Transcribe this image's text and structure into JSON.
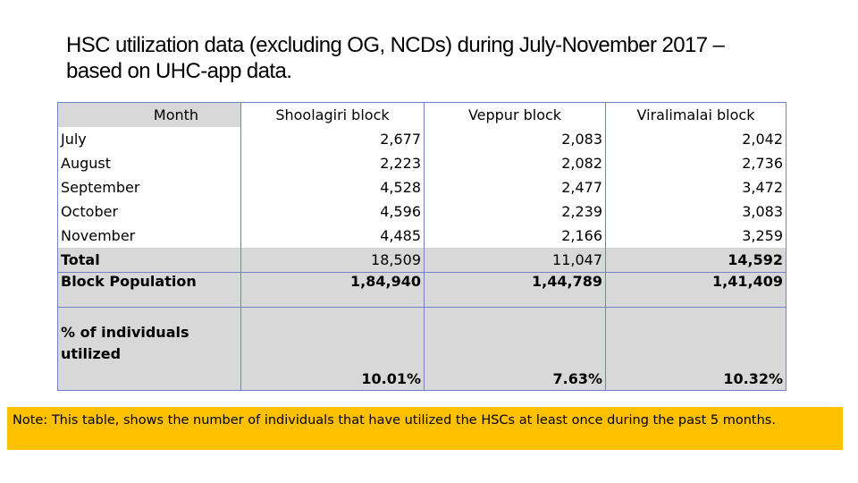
{
  "title_line1": "HSC utilization data (excluding OG, NCDs) during July-November 2017 –",
  "title_line2": "based on UHC-app data.",
  "table": {
    "headers": [
      "Month",
      "Shoolagiri block",
      "Veppur block",
      "Viralimalai block"
    ],
    "months": [
      "July",
      "August",
      "September",
      "October",
      "November"
    ],
    "total_label": "Total",
    "columns": [
      {
        "values": [
          "2,677",
          "2,223",
          "4,528",
          "4,596",
          "4,485"
        ],
        "total": "18,509",
        "population": "1,84,940",
        "percent": "10.01%"
      },
      {
        "values": [
          "2,083",
          "2,082",
          "2,477",
          "2,239",
          "2,166"
        ],
        "total": "11,047",
        "population": "1,44,789",
        "percent": "7.63%"
      },
      {
        "values": [
          "2,042",
          "2,736",
          "3,472",
          "3,083",
          "3,259"
        ],
        "total": "14,592",
        "population": "1,41,409",
        "percent": "10.32%"
      }
    ],
    "population_label": "Block Population",
    "percent_label_line1": "% of individuals",
    "percent_label_line2": "utilized"
  },
  "note": "Note: This table, shows the number of individuals that have utilized the HSCs at least once during the past 5 months.",
  "colors": {
    "border": "#6f84c4",
    "shade": "#d8d8d8",
    "note_bg": "#ffc000"
  }
}
